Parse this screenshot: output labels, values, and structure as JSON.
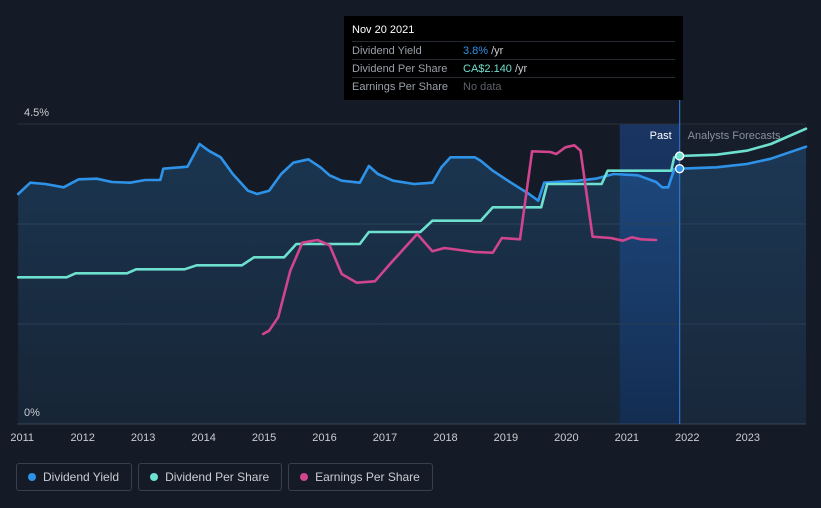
{
  "tooltip": {
    "date": "Nov 20 2021",
    "rows": [
      {
        "label": "Dividend Yield",
        "value": "3.8%",
        "unit": "/yr",
        "color": "#2e93e8"
      },
      {
        "label": "Dividend Per Share",
        "value": "CA$2.140",
        "unit": "/yr",
        "color": "#6ee0cf"
      },
      {
        "label": "Earnings Per Share",
        "value": "No data",
        "unit": "",
        "color": "#5c6169"
      }
    ]
  },
  "labels": {
    "past": "Past",
    "forecast": "Analysts Forecasts"
  },
  "legend": [
    {
      "label": "Dividend Yield",
      "color": "#2e93e8"
    },
    {
      "label": "Dividend Per Share",
      "color": "#6ee0cf"
    },
    {
      "label": "Earnings Per Share",
      "color": "#d0458d"
    }
  ],
  "chart_data": {
    "type": "line",
    "y_ticks": [
      "4.5%",
      "0%"
    ],
    "x_ticks": [
      "2011",
      "2012",
      "2013",
      "2014",
      "2015",
      "2016",
      "2017",
      "2018",
      "2019",
      "2020",
      "2021",
      "2022",
      "2023"
    ],
    "xlim": [
      2010.93,
      2023.98
    ],
    "ylim": [
      0,
      4.5
    ],
    "marker_x": 2021.89,
    "past_shade_start": 2020.9,
    "series": [
      {
        "name": "Dividend Yield",
        "color": "#2e93e8",
        "fill": true,
        "values": [
          [
            2010.95,
            3.45
          ],
          [
            2011.15,
            3.62
          ],
          [
            2011.4,
            3.6
          ],
          [
            2011.7,
            3.55
          ],
          [
            2011.95,
            3.67
          ],
          [
            2012.25,
            3.68
          ],
          [
            2012.5,
            3.63
          ],
          [
            2012.8,
            3.62
          ],
          [
            2013.05,
            3.66
          ],
          [
            2013.3,
            3.66
          ],
          [
            2013.35,
            3.83
          ],
          [
            2013.75,
            3.86
          ],
          [
            2013.95,
            4.2
          ],
          [
            2014.1,
            4.1
          ],
          [
            2014.3,
            4.0
          ],
          [
            2014.5,
            3.75
          ],
          [
            2014.75,
            3.5
          ],
          [
            2014.9,
            3.45
          ],
          [
            2015.1,
            3.5
          ],
          [
            2015.3,
            3.75
          ],
          [
            2015.5,
            3.92
          ],
          [
            2015.75,
            3.97
          ],
          [
            2015.95,
            3.85
          ],
          [
            2016.1,
            3.73
          ],
          [
            2016.3,
            3.65
          ],
          [
            2016.6,
            3.62
          ],
          [
            2016.75,
            3.87
          ],
          [
            2016.9,
            3.75
          ],
          [
            2017.15,
            3.65
          ],
          [
            2017.5,
            3.6
          ],
          [
            2017.8,
            3.62
          ],
          [
            2017.95,
            3.85
          ],
          [
            2018.1,
            4.0
          ],
          [
            2018.5,
            4.0
          ],
          [
            2018.6,
            3.95
          ],
          [
            2018.8,
            3.8
          ],
          [
            2019.1,
            3.62
          ],
          [
            2019.4,
            3.45
          ],
          [
            2019.55,
            3.35
          ],
          [
            2019.65,
            3.62
          ],
          [
            2020.2,
            3.65
          ],
          [
            2020.5,
            3.68
          ],
          [
            2020.8,
            3.75
          ],
          [
            2021.2,
            3.73
          ],
          [
            2021.5,
            3.63
          ],
          [
            2021.6,
            3.55
          ],
          [
            2021.7,
            3.55
          ],
          [
            2021.8,
            3.82
          ],
          [
            2021.89,
            3.83
          ],
          [
            2022.5,
            3.85
          ],
          [
            2023.0,
            3.9
          ],
          [
            2023.4,
            3.98
          ],
          [
            2023.98,
            4.16
          ]
        ]
      },
      {
        "name": "Dividend Per Share",
        "color": "#6ee0cf",
        "fill": false,
        "values": [
          [
            2010.95,
            2.2
          ],
          [
            2011.75,
            2.2
          ],
          [
            2011.9,
            2.26
          ],
          [
            2012.75,
            2.26
          ],
          [
            2012.9,
            2.32
          ],
          [
            2013.7,
            2.32
          ],
          [
            2013.9,
            2.38
          ],
          [
            2014.65,
            2.38
          ],
          [
            2014.85,
            2.5
          ],
          [
            2015.35,
            2.5
          ],
          [
            2015.55,
            2.7
          ],
          [
            2016.6,
            2.7
          ],
          [
            2016.75,
            2.88
          ],
          [
            2017.6,
            2.88
          ],
          [
            2017.8,
            3.05
          ],
          [
            2018.6,
            3.05
          ],
          [
            2018.8,
            3.25
          ],
          [
            2019.6,
            3.25
          ],
          [
            2019.7,
            3.6
          ],
          [
            2020.6,
            3.6
          ],
          [
            2020.7,
            3.8
          ],
          [
            2021.45,
            3.8
          ],
          [
            2021.75,
            3.8
          ],
          [
            2021.8,
            4.0
          ],
          [
            2021.89,
            4.02
          ],
          [
            2022.5,
            4.04
          ],
          [
            2023.0,
            4.1
          ],
          [
            2023.4,
            4.2
          ],
          [
            2023.98,
            4.43
          ]
        ]
      },
      {
        "name": "Earnings Per Share",
        "color": "#d0458d",
        "fill": false,
        "values": [
          [
            2015.0,
            1.35
          ],
          [
            2015.1,
            1.4
          ],
          [
            2015.25,
            1.6
          ],
          [
            2015.45,
            2.3
          ],
          [
            2015.65,
            2.72
          ],
          [
            2015.9,
            2.76
          ],
          [
            2016.1,
            2.68
          ],
          [
            2016.3,
            2.25
          ],
          [
            2016.55,
            2.12
          ],
          [
            2016.85,
            2.14
          ],
          [
            2017.1,
            2.4
          ],
          [
            2017.55,
            2.85
          ],
          [
            2017.8,
            2.59
          ],
          [
            2018.0,
            2.64
          ],
          [
            2018.5,
            2.58
          ],
          [
            2018.8,
            2.57
          ],
          [
            2018.95,
            2.79
          ],
          [
            2019.25,
            2.77
          ],
          [
            2019.45,
            4.09
          ],
          [
            2019.75,
            4.08
          ],
          [
            2019.85,
            4.05
          ],
          [
            2020.0,
            4.15
          ],
          [
            2020.15,
            4.18
          ],
          [
            2020.25,
            4.1
          ],
          [
            2020.45,
            2.81
          ],
          [
            2020.75,
            2.79
          ],
          [
            2020.95,
            2.75
          ],
          [
            2021.1,
            2.8
          ],
          [
            2021.25,
            2.77
          ],
          [
            2021.5,
            2.76
          ]
        ]
      }
    ]
  }
}
